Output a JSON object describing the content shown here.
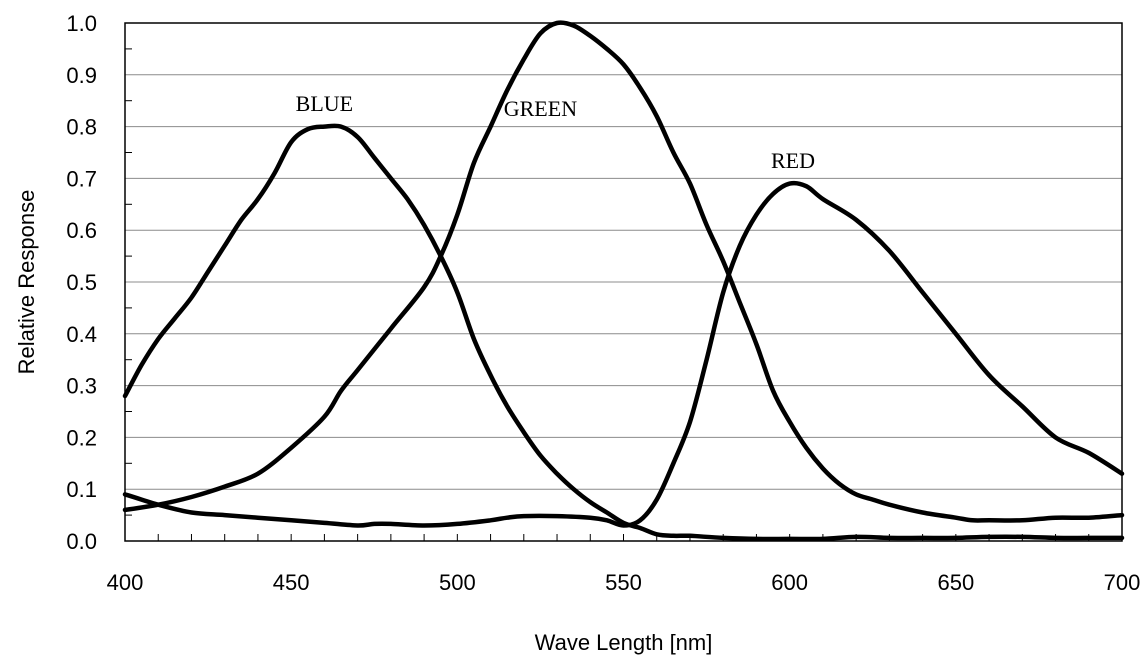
{
  "chart_data": {
    "type": "line",
    "xlabel": "Wave Length [nm]",
    "ylabel": "Relative Response",
    "xlim": [
      400,
      700
    ],
    "ylim": [
      0.0,
      1.0
    ],
    "x_ticks": [
      "400",
      "450",
      "500",
      "550",
      "600",
      "650",
      "700"
    ],
    "y_ticks": [
      "0.0",
      "0.1",
      "0.2",
      "0.3",
      "0.4",
      "0.5",
      "0.6",
      "0.7",
      "0.8",
      "0.9",
      "1.0"
    ],
    "grid": "horizontal",
    "line_color": "#000000",
    "series": [
      {
        "name": "BLUE",
        "x": [
          400,
          405,
          410,
          415,
          420,
          425,
          430,
          435,
          440,
          445,
          450,
          455,
          460,
          465,
          470,
          475,
          480,
          485,
          490,
          495,
          500,
          505,
          510,
          515,
          520,
          525,
          530,
          535,
          540,
          545,
          550,
          555,
          560,
          565,
          570,
          580,
          590,
          600,
          610,
          620,
          630,
          640,
          650,
          660,
          670,
          680,
          690,
          700
        ],
        "y": [
          0.28,
          0.34,
          0.39,
          0.43,
          0.47,
          0.52,
          0.57,
          0.62,
          0.66,
          0.71,
          0.77,
          0.795,
          0.8,
          0.8,
          0.78,
          0.74,
          0.7,
          0.66,
          0.61,
          0.55,
          0.48,
          0.39,
          0.32,
          0.26,
          0.21,
          0.165,
          0.13,
          0.1,
          0.075,
          0.055,
          0.035,
          0.025,
          0.013,
          0.01,
          0.01,
          0.006,
          0.004,
          0.004,
          0.004,
          0.008,
          0.006,
          0.006,
          0.006,
          0.008,
          0.008,
          0.006,
          0.006,
          0.006
        ]
      },
      {
        "name": "GREEN",
        "x": [
          400,
          410,
          420,
          430,
          440,
          450,
          460,
          465,
          470,
          480,
          490,
          495,
          500,
          505,
          510,
          515,
          520,
          525,
          530,
          535,
          540,
          545,
          550,
          555,
          560,
          565,
          570,
          575,
          580,
          585,
          590,
          595,
          600,
          605,
          610,
          615,
          620,
          625,
          630,
          640,
          650,
          655,
          660,
          670,
          680,
          690,
          700
        ],
        "y": [
          0.06,
          0.07,
          0.085,
          0.105,
          0.13,
          0.18,
          0.24,
          0.29,
          0.33,
          0.41,
          0.49,
          0.55,
          0.63,
          0.73,
          0.8,
          0.87,
          0.93,
          0.98,
          1.0,
          0.995,
          0.975,
          0.95,
          0.92,
          0.875,
          0.82,
          0.75,
          0.69,
          0.61,
          0.54,
          0.46,
          0.38,
          0.29,
          0.23,
          0.18,
          0.14,
          0.11,
          0.09,
          0.08,
          0.07,
          0.055,
          0.045,
          0.04,
          0.04,
          0.04,
          0.045,
          0.045,
          0.05
        ]
      },
      {
        "name": "RED",
        "x": [
          400,
          405,
          410,
          420,
          430,
          440,
          450,
          460,
          470,
          475,
          480,
          490,
          500,
          510,
          515,
          520,
          530,
          540,
          545,
          550,
          555,
          560,
          565,
          570,
          575,
          580,
          585,
          590,
          595,
          600,
          605,
          610,
          620,
          630,
          640,
          650,
          660,
          670,
          680,
          690,
          700
        ],
        "y": [
          0.09,
          0.08,
          0.07,
          0.055,
          0.05,
          0.045,
          0.04,
          0.035,
          0.03,
          0.033,
          0.033,
          0.03,
          0.033,
          0.04,
          0.045,
          0.048,
          0.048,
          0.045,
          0.04,
          0.03,
          0.04,
          0.08,
          0.15,
          0.23,
          0.35,
          0.48,
          0.57,
          0.63,
          0.67,
          0.69,
          0.685,
          0.66,
          0.62,
          0.56,
          0.48,
          0.4,
          0.32,
          0.26,
          0.2,
          0.17,
          0.13
        ]
      }
    ],
    "series_labels": [
      {
        "text": "BLUE",
        "x": 460,
        "y": 0.83
      },
      {
        "text": "GREEN",
        "x": 525,
        "y": 0.82
      },
      {
        "text": "RED",
        "x": 601,
        "y": 0.72
      }
    ]
  }
}
